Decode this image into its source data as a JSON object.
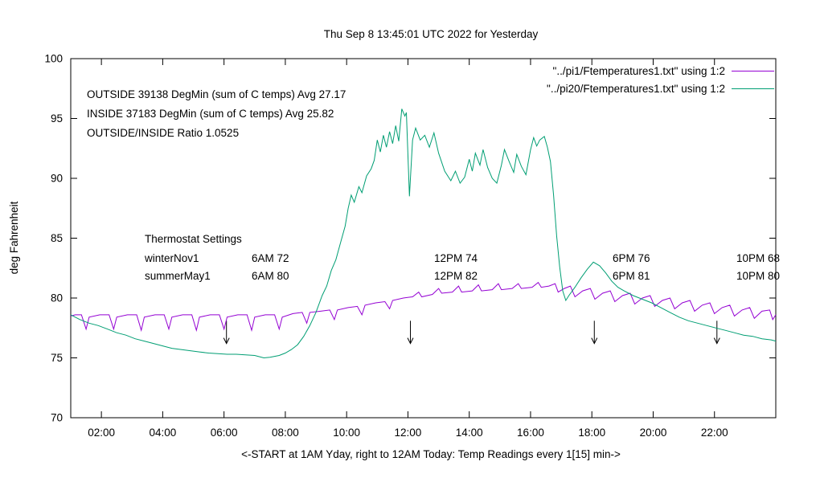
{
  "title": "Thu Sep  8 13:45:01 UTC 2022 for Yesterday",
  "y_axis_label": "deg Fahrenheit",
  "x_axis_label": "<-START at 1AM Yday, right to 12AM Today:  Temp Readings every 1[15] min->",
  "legend": [
    {
      "label": "\"../pi1/Ftemperatures1.txt\" using 1:2",
      "color": "#9400d3"
    },
    {
      "label": "\"../pi20/Ftemperatures1.txt\" using 1:2",
      "color": "#009e73"
    }
  ],
  "annotations": {
    "outside_line": "OUTSIDE 39138 DegMin (sum of C temps) Avg 27.17",
    "inside_line": "INSIDE 37183 DegMin (sum of C temps) Avg 25.82",
    "ratio_line": "OUTSIDE/INSIDE Ratio 1.0525",
    "thermostat_title": "Thermostat Settings",
    "thermostat_rows": [
      {
        "name": "winterNov1",
        "c1": "6AM 72",
        "c2": "12PM 74",
        "c3": "6PM 76",
        "c4": "10PM 68"
      },
      {
        "name": "summerMay1",
        "c1": "6AM 80",
        "c2": "12PM 82",
        "c3": "6PM 81",
        "c4": "10PM 80"
      }
    ]
  },
  "chart_data": {
    "type": "line",
    "title": "Thu Sep  8 13:45:01 UTC 2022 for Yesterday",
    "xlabel": "<-START at 1AM Yday, right to 12AM Today:  Temp Readings every 1[15] min->",
    "ylabel": "deg Fahrenheit",
    "x_unit": "hour of day (1 = 1AM yesterday, 24 = 12AM today)",
    "xlim": [
      1,
      24
    ],
    "ylim": [
      70,
      100
    ],
    "grid": false,
    "legend_position": "top-right-inside",
    "y_ticks": [
      70,
      75,
      80,
      85,
      90,
      95,
      100
    ],
    "x_ticks": [
      {
        "t": 2,
        "label": "02:00"
      },
      {
        "t": 4,
        "label": "04:00"
      },
      {
        "t": 6,
        "label": "06:00"
      },
      {
        "t": 8,
        "label": "08:00"
      },
      {
        "t": 10,
        "label": "10:00"
      },
      {
        "t": 12,
        "label": "12:00"
      },
      {
        "t": 14,
        "label": "14:00"
      },
      {
        "t": 16,
        "label": "16:00"
      },
      {
        "t": 18,
        "label": "18:00"
      },
      {
        "t": 20,
        "label": "20:00"
      },
      {
        "t": 22,
        "label": "22:00"
      }
    ],
    "arrows_x": [
      6.08,
      12.08,
      18.08,
      22.08
    ],
    "arrow_y_from": 78.1,
    "arrow_y_to": 76.2,
    "series": [
      {
        "name": "../pi1/Ftemperatures1.txt",
        "color": "#9400d3",
        "points": [
          [
            1.0,
            78.5
          ],
          [
            1.15,
            78.6
          ],
          [
            1.35,
            78.6
          ],
          [
            1.5,
            77.4
          ],
          [
            1.6,
            78.4
          ],
          [
            1.95,
            78.6
          ],
          [
            2.25,
            78.6
          ],
          [
            2.4,
            77.4
          ],
          [
            2.5,
            78.4
          ],
          [
            2.85,
            78.6
          ],
          [
            3.15,
            78.6
          ],
          [
            3.3,
            77.3
          ],
          [
            3.4,
            78.4
          ],
          [
            3.75,
            78.6
          ],
          [
            4.05,
            78.6
          ],
          [
            4.2,
            77.4
          ],
          [
            4.3,
            78.4
          ],
          [
            4.65,
            78.6
          ],
          [
            4.95,
            78.6
          ],
          [
            5.1,
            77.3
          ],
          [
            5.2,
            78.4
          ],
          [
            5.55,
            78.6
          ],
          [
            5.85,
            78.6
          ],
          [
            6.0,
            77.4
          ],
          [
            6.1,
            78.4
          ],
          [
            6.45,
            78.6
          ],
          [
            6.75,
            78.6
          ],
          [
            6.9,
            77.3
          ],
          [
            7.0,
            78.4
          ],
          [
            7.35,
            78.6
          ],
          [
            7.65,
            78.6
          ],
          [
            7.8,
            77.4
          ],
          [
            7.9,
            78.4
          ],
          [
            8.25,
            78.7
          ],
          [
            8.55,
            78.8
          ],
          [
            8.7,
            77.9
          ],
          [
            8.8,
            78.8
          ],
          [
            9.15,
            78.9
          ],
          [
            9.45,
            79.0
          ],
          [
            9.6,
            78.2
          ],
          [
            9.7,
            79.0
          ],
          [
            10.05,
            79.2
          ],
          [
            10.35,
            79.3
          ],
          [
            10.5,
            78.6
          ],
          [
            10.6,
            79.4
          ],
          [
            10.95,
            79.6
          ],
          [
            11.25,
            79.7
          ],
          [
            11.4,
            79.1
          ],
          [
            11.5,
            79.8
          ],
          [
            11.85,
            80.0
          ],
          [
            12.15,
            80.1
          ],
          [
            12.35,
            80.5
          ],
          [
            12.45,
            80.1
          ],
          [
            12.8,
            80.3
          ],
          [
            13.0,
            80.8
          ],
          [
            13.1,
            80.4
          ],
          [
            13.45,
            80.5
          ],
          [
            13.65,
            81.0
          ],
          [
            13.75,
            80.5
          ],
          [
            14.1,
            80.6
          ],
          [
            14.3,
            81.1
          ],
          [
            14.4,
            80.6
          ],
          [
            14.75,
            80.7
          ],
          [
            14.95,
            81.2
          ],
          [
            15.05,
            80.7
          ],
          [
            15.4,
            80.8
          ],
          [
            15.6,
            81.2
          ],
          [
            15.7,
            80.8
          ],
          [
            16.05,
            80.9
          ],
          [
            16.25,
            81.3
          ],
          [
            16.35,
            80.9
          ],
          [
            16.6,
            81.0
          ],
          [
            16.8,
            81.2
          ],
          [
            16.9,
            80.5
          ],
          [
            17.1,
            80.8
          ],
          [
            17.3,
            81.0
          ],
          [
            17.45,
            80.1
          ],
          [
            17.7,
            80.6
          ],
          [
            17.95,
            80.8
          ],
          [
            18.1,
            79.9
          ],
          [
            18.35,
            80.4
          ],
          [
            18.6,
            80.6
          ],
          [
            18.75,
            79.7
          ],
          [
            19.0,
            80.2
          ],
          [
            19.25,
            80.4
          ],
          [
            19.4,
            79.5
          ],
          [
            19.65,
            80.0
          ],
          [
            19.9,
            80.2
          ],
          [
            20.05,
            79.3
          ],
          [
            20.3,
            79.8
          ],
          [
            20.55,
            80.0
          ],
          [
            20.7,
            79.1
          ],
          [
            20.95,
            79.6
          ],
          [
            21.2,
            79.8
          ],
          [
            21.35,
            78.9
          ],
          [
            21.6,
            79.4
          ],
          [
            21.85,
            79.6
          ],
          [
            22.0,
            78.7
          ],
          [
            22.25,
            79.2
          ],
          [
            22.5,
            79.4
          ],
          [
            22.65,
            78.5
          ],
          [
            22.9,
            79.0
          ],
          [
            23.15,
            79.2
          ],
          [
            23.3,
            78.3
          ],
          [
            23.55,
            78.9
          ],
          [
            23.8,
            79.0
          ],
          [
            23.9,
            78.2
          ],
          [
            24.0,
            78.6
          ]
        ]
      },
      {
        "name": "../pi20/Ftemperatures1.txt",
        "color": "#009e73",
        "points": [
          [
            1.0,
            78.6
          ],
          [
            1.3,
            78.2
          ],
          [
            1.6,
            77.9
          ],
          [
            1.9,
            77.7
          ],
          [
            2.2,
            77.4
          ],
          [
            2.5,
            77.1
          ],
          [
            2.8,
            76.9
          ],
          [
            3.1,
            76.6
          ],
          [
            3.4,
            76.4
          ],
          [
            3.7,
            76.2
          ],
          [
            4.0,
            76.0
          ],
          [
            4.3,
            75.8
          ],
          [
            4.6,
            75.7
          ],
          [
            4.9,
            75.6
          ],
          [
            5.2,
            75.5
          ],
          [
            5.5,
            75.4
          ],
          [
            5.8,
            75.35
          ],
          [
            6.1,
            75.3
          ],
          [
            6.4,
            75.3
          ],
          [
            6.7,
            75.25
          ],
          [
            7.0,
            75.2
          ],
          [
            7.3,
            75.0
          ],
          [
            7.5,
            75.05
          ],
          [
            7.8,
            75.2
          ],
          [
            8.0,
            75.4
          ],
          [
            8.2,
            75.7
          ],
          [
            8.4,
            76.1
          ],
          [
            8.6,
            76.8
          ],
          [
            8.8,
            77.7
          ],
          [
            9.0,
            78.8
          ],
          [
            9.2,
            80.2
          ],
          [
            9.35,
            81.0
          ],
          [
            9.5,
            82.3
          ],
          [
            9.65,
            83.2
          ],
          [
            9.8,
            84.6
          ],
          [
            9.95,
            86.0
          ],
          [
            10.05,
            87.5
          ],
          [
            10.15,
            88.6
          ],
          [
            10.25,
            88.0
          ],
          [
            10.4,
            89.3
          ],
          [
            10.5,
            88.8
          ],
          [
            10.65,
            90.2
          ],
          [
            10.8,
            90.8
          ],
          [
            10.9,
            91.5
          ],
          [
            11.0,
            93.2
          ],
          [
            11.1,
            92.2
          ],
          [
            11.2,
            93.6
          ],
          [
            11.3,
            92.6
          ],
          [
            11.4,
            93.9
          ],
          [
            11.5,
            92.9
          ],
          [
            11.6,
            94.4
          ],
          [
            11.7,
            93.1
          ],
          [
            11.8,
            95.8
          ],
          [
            11.9,
            95.2
          ],
          [
            11.95,
            95.5
          ],
          [
            12.05,
            88.5
          ],
          [
            12.15,
            93.2
          ],
          [
            12.25,
            94.2
          ],
          [
            12.4,
            93.2
          ],
          [
            12.55,
            93.6
          ],
          [
            12.7,
            92.6
          ],
          [
            12.85,
            93.8
          ],
          [
            13.0,
            92.1
          ],
          [
            13.2,
            90.6
          ],
          [
            13.4,
            89.8
          ],
          [
            13.55,
            90.6
          ],
          [
            13.7,
            89.6
          ],
          [
            13.85,
            90.1
          ],
          [
            14.0,
            91.6
          ],
          [
            14.1,
            90.6
          ],
          [
            14.2,
            92.1
          ],
          [
            14.35,
            91.1
          ],
          [
            14.45,
            92.4
          ],
          [
            14.6,
            90.9
          ],
          [
            14.75,
            90.0
          ],
          [
            14.9,
            89.6
          ],
          [
            15.05,
            91.1
          ],
          [
            15.15,
            92.4
          ],
          [
            15.3,
            91.4
          ],
          [
            15.45,
            90.5
          ],
          [
            15.55,
            92.0
          ],
          [
            15.7,
            91.0
          ],
          [
            15.85,
            90.3
          ],
          [
            16.0,
            92.4
          ],
          [
            16.1,
            93.4
          ],
          [
            16.2,
            92.7
          ],
          [
            16.3,
            93.2
          ],
          [
            16.45,
            93.5
          ],
          [
            16.55,
            92.6
          ],
          [
            16.65,
            91.4
          ],
          [
            16.75,
            88.6
          ],
          [
            16.85,
            85.2
          ],
          [
            16.95,
            82.6
          ],
          [
            17.05,
            80.6
          ],
          [
            17.15,
            79.8
          ],
          [
            17.25,
            80.2
          ],
          [
            17.45,
            80.9
          ],
          [
            17.65,
            81.7
          ],
          [
            17.85,
            82.4
          ],
          [
            18.05,
            83.0
          ],
          [
            18.25,
            82.7
          ],
          [
            18.45,
            82.1
          ],
          [
            18.65,
            81.4
          ],
          [
            18.85,
            80.9
          ],
          [
            19.05,
            80.6
          ],
          [
            19.35,
            80.2
          ],
          [
            19.65,
            79.9
          ],
          [
            19.95,
            79.6
          ],
          [
            20.25,
            79.2
          ],
          [
            20.55,
            78.8
          ],
          [
            20.85,
            78.4
          ],
          [
            21.15,
            78.1
          ],
          [
            21.45,
            77.9
          ],
          [
            21.75,
            77.7
          ],
          [
            22.05,
            77.5
          ],
          [
            22.35,
            77.3
          ],
          [
            22.65,
            77.1
          ],
          [
            22.95,
            76.9
          ],
          [
            23.25,
            76.8
          ],
          [
            23.55,
            76.6
          ],
          [
            23.85,
            76.5
          ],
          [
            24.0,
            76.4
          ]
        ]
      }
    ]
  }
}
